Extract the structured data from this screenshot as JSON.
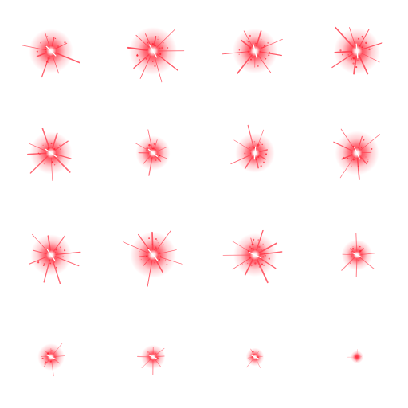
{
  "sprite_sheet": {
    "columns": 4,
    "rows": 4,
    "frames": [
      {
        "frame": 1,
        "intensity": 0.9,
        "angle": 20,
        "rays": 8,
        "bright_core": true
      },
      {
        "frame": 2,
        "intensity": 1.0,
        "angle": 35,
        "rays": 10,
        "bright_core": true
      },
      {
        "frame": 3,
        "intensity": 0.92,
        "angle": 50,
        "rays": 9,
        "bright_core": true
      },
      {
        "frame": 4,
        "intensity": 0.95,
        "angle": 60,
        "rays": 9,
        "bright_core": true
      },
      {
        "frame": 5,
        "intensity": 0.85,
        "angle": 10,
        "rays": 9,
        "bright_core": true
      },
      {
        "frame": 6,
        "intensity": 0.65,
        "angle": 15,
        "rays": 9,
        "bright_core": true
      },
      {
        "frame": 7,
        "intensity": 0.78,
        "angle": 70,
        "rays": 8,
        "bright_core": true
      },
      {
        "frame": 8,
        "intensity": 0.9,
        "angle": 40,
        "rays": 9,
        "bright_core": true
      },
      {
        "frame": 9,
        "intensity": 0.82,
        "angle": 30,
        "rays": 9,
        "bright_core": true
      },
      {
        "frame": 10,
        "intensity": 0.95,
        "angle": 25,
        "rays": 10,
        "bright_core": true
      },
      {
        "frame": 11,
        "intensity": 0.88,
        "angle": 0,
        "rays": 10,
        "bright_core": true
      },
      {
        "frame": 12,
        "intensity": 0.55,
        "angle": 0,
        "rays": 8,
        "bright_core": true
      },
      {
        "frame": 13,
        "intensity": 0.45,
        "angle": 0,
        "rays": 8,
        "bright_core": true
      },
      {
        "frame": 14,
        "intensity": 0.38,
        "angle": 0,
        "rays": 8,
        "bright_core": true
      },
      {
        "frame": 15,
        "intensity": 0.22,
        "angle": 0,
        "rays": 6,
        "bright_core": true
      },
      {
        "frame": 16,
        "intensity": 0.08,
        "angle": 0,
        "rays": 4,
        "bright_core": false
      }
    ]
  },
  "colors": {
    "background": "#ffffff",
    "glow": "#ff3a4a",
    "glow_deep": "#ff1e2e",
    "core": "#ffffff"
  }
}
